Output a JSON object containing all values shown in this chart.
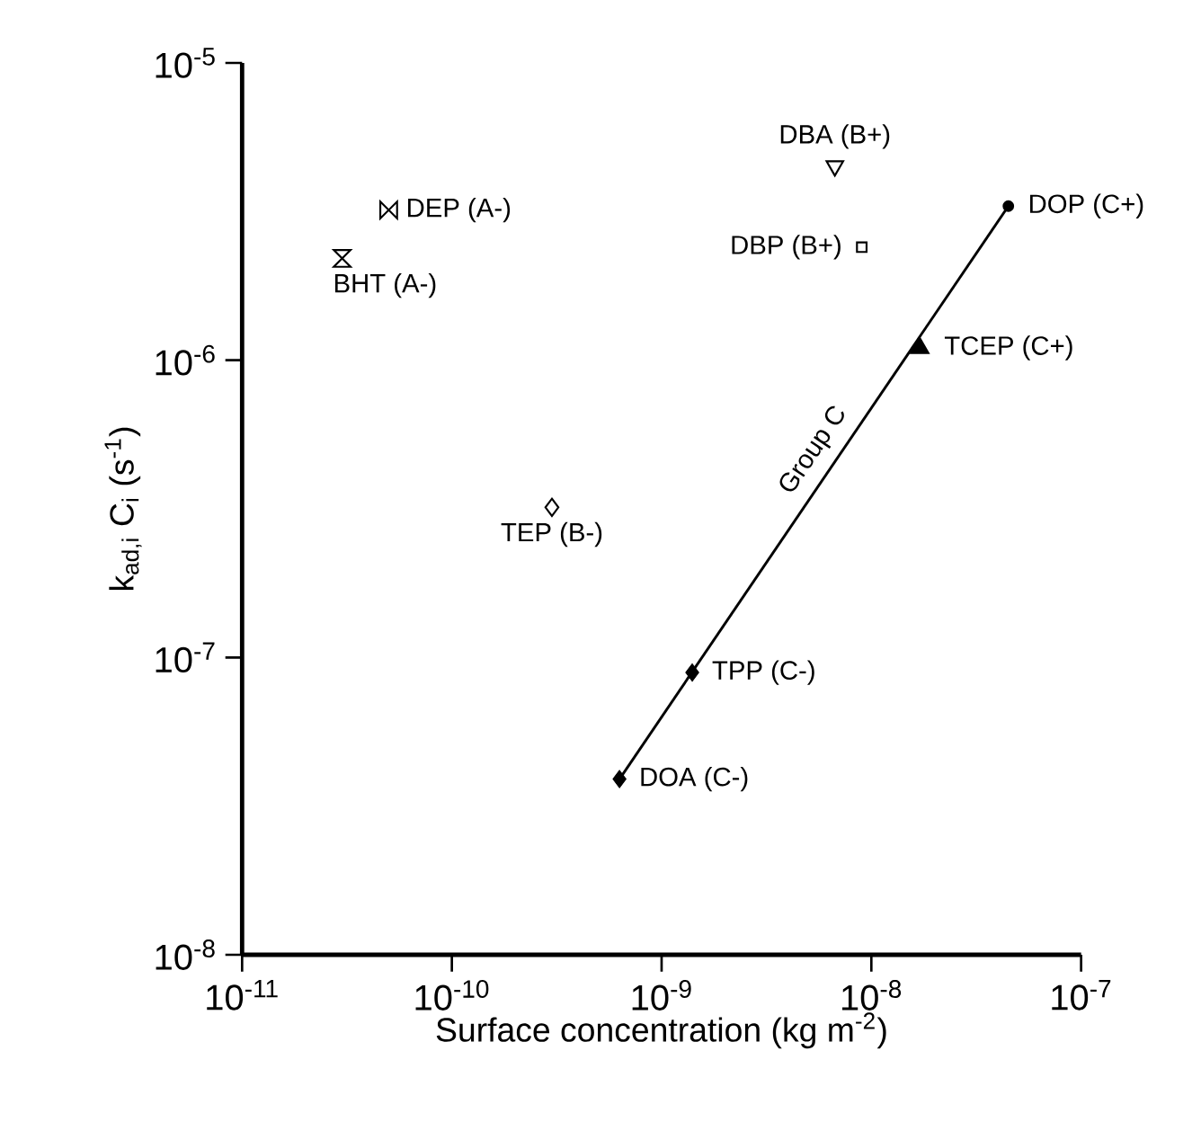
{
  "chart_data": {
    "type": "scatter",
    "xlabel": "Surface concentration (kg m$^{-2}$)",
    "ylabel": "k$_{ad,i}$ C$_{i}$  (s$^{-1}$)",
    "log": "xy",
    "xlim": [
      1e-11,
      1e-07
    ],
    "ylim": [
      1e-08,
      1e-05
    ],
    "xticks": [
      {
        "value": 1e-11,
        "label": "10$^{-11}$"
      },
      {
        "value": 1e-10,
        "label": "10$^{-10}$"
      },
      {
        "value": 1e-09,
        "label": "10$^{-9}$"
      },
      {
        "value": 1e-08,
        "label": "10$^{-8}$"
      },
      {
        "value": 1e-07,
        "label": "10$^{-7}$"
      }
    ],
    "yticks": [
      {
        "value": 1e-08,
        "label": "10$^{-8}$"
      },
      {
        "value": 1e-07,
        "label": "10$^{-7}$"
      },
      {
        "value": 1e-06,
        "label": "10$^{-6}$"
      },
      {
        "value": 1e-05,
        "label": "10$^{-5}$"
      }
    ],
    "grid": false,
    "legend": false,
    "series": [
      {
        "name": "Group C",
        "type": "line",
        "color": "#000000",
        "x": [
          6.3e-10,
          4.5e-08
        ],
        "values": [
          3.9e-08,
          3.3e-06
        ],
        "marker": "none",
        "line_style": "solid"
      },
      {
        "name": "DEP (A-)",
        "color": "#000000",
        "x": [
          5e-11
        ],
        "values": [
          3.2e-06
        ]
      },
      {
        "name": "BHT (A-)",
        "color": "#000000",
        "x": [
          3e-11
        ],
        "values": [
          2.2e-06
        ]
      },
      {
        "name": "TEP (B-)",
        "color": "#000000",
        "x": [
          3e-10
        ],
        "values": [
          3.2e-07
        ],
        "marker": "diamond"
      },
      {
        "name": "DBA (B+)",
        "color": "#000000",
        "x": [
          6.7e-09
        ],
        "values": [
          4.5e-06
        ],
        "marker": "triangle_down"
      },
      {
        "name": "DBP (B+)",
        "color": "#000000",
        "x": [
          9e-09
        ],
        "values": [
          2.4e-06
        ],
        "marker": "square"
      },
      {
        "name": "DOP (C+)",
        "color": "#000000",
        "x": [
          4.5e-08
        ],
        "values": [
          3.3e-06
        ],
        "marker": "circle_filled"
      },
      {
        "name": "TCEP (C+)",
        "color": "#000000",
        "x": [
          1.7e-08
        ],
        "values": [
          1.1e-06
        ],
        "marker": "triangle_filled"
      },
      {
        "name": "TPP (C-)",
        "color": "#000000",
        "x": [
          1.4e-09
        ],
        "values": [
          8.9e-08
        ],
        "marker": "diamond_filled"
      },
      {
        "name": "DOA (C-)",
        "color": "#000000",
        "x": [
          6.3e-10
        ],
        "values": [
          3.9e-08
        ],
        "marker": "diamond_filled"
      }
    ]
  }
}
